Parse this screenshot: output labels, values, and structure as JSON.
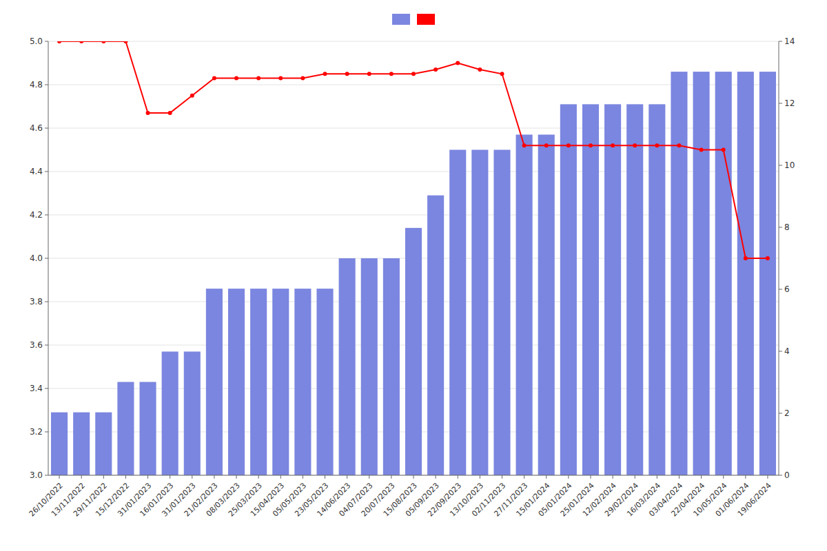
{
  "chart_data": {
    "type": "bar",
    "categories": [
      "26/10/2022",
      "13/11/2022",
      "29/11/2022",
      "15/12/2022",
      "31/01/2023",
      "16/01/2023",
      "31/01/2023",
      "21/02/2023",
      "08/03/2023",
      "25/03/2023",
      "15/04/2023",
      "05/05/2023",
      "23/05/2023",
      "14/06/2023",
      "04/07/2023",
      "20/07/2023",
      "15/08/2023",
      "05/09/2023",
      "22/09/2023",
      "13/10/2023",
      "02/11/2023",
      "27/11/2023",
      "15/01/2024",
      "05/01/2024",
      "25/01/2024",
      "12/02/2024",
      "29/02/2024",
      "16/03/2024",
      "03/04/2024",
      "22/04/2024",
      "10/05/2024",
      "01/06/2024",
      "19/06/2024"
    ],
    "series": [
      {
        "type": "bar",
        "color": "#7b86e0",
        "values": [
          3.29,
          3.29,
          3.29,
          3.43,
          3.43,
          3.57,
          3.57,
          3.86,
          3.86,
          3.86,
          3.86,
          3.86,
          3.86,
          4.0,
          4.0,
          4.0,
          4.14,
          4.29,
          4.5,
          4.5,
          4.5,
          4.57,
          4.57,
          4.71,
          4.71,
          4.71,
          4.71,
          4.71,
          4.86,
          4.86,
          4.86,
          4.86,
          4.86
        ]
      },
      {
        "type": "line",
        "color": "#ff0000",
        "marker": "circle",
        "values": [
          5.0,
          5.0,
          5.0,
          5.0,
          4.67,
          4.67,
          4.75,
          4.83,
          4.83,
          4.83,
          4.83,
          4.83,
          4.85,
          4.85,
          4.85,
          4.85,
          4.85,
          4.87,
          4.9,
          4.87,
          4.85,
          4.52,
          4.52,
          4.52,
          4.52,
          4.52,
          4.52,
          4.52,
          4.52,
          4.5,
          4.5,
          4.0,
          4.0
        ]
      }
    ],
    "ylim": [
      3.0,
      5.0
    ],
    "yticks": [
      {
        "value": 3.0,
        "label": "3.0"
      },
      3.2,
      3.4,
      3.6,
      3.8,
      {
        "value": 4.0,
        "label": "4.0"
      },
      4.2,
      4.4,
      4.6,
      4.8,
      {
        "value": 5.0,
        "label": "5.0"
      }
    ],
    "y2lim": [
      0,
      14
    ],
    "y2ticks": [
      0,
      2,
      4,
      6,
      8,
      10,
      12,
      14
    ],
    "grid": true,
    "legend": "top"
  }
}
